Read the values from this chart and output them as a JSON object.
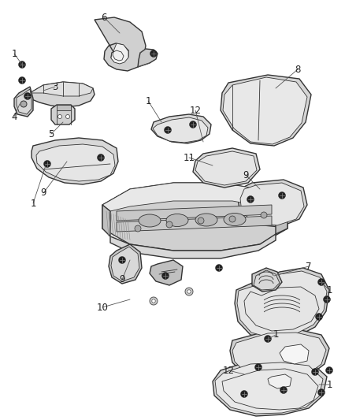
{
  "bg_color": "#ffffff",
  "line_color": "#555555",
  "dark_line": "#333333",
  "label_color": "#222222",
  "label_fontsize": 8.5,
  "fig_width": 4.38,
  "fig_height": 5.33,
  "dpi": 100,
  "fill_light": "#d8d8d8",
  "fill_mid": "#c8c8c8",
  "fill_dark": "#b8b8b8",
  "fill_white": "#f5f5f5",
  "screw_color": "#555555",
  "leader_color": "#555555"
}
